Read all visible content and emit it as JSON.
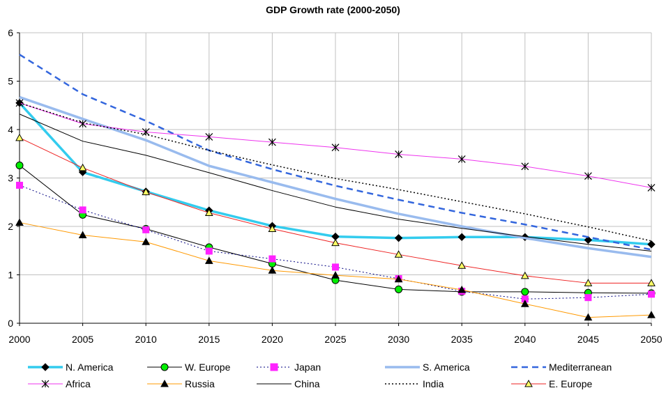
{
  "chart_data": {
    "type": "line",
    "title": "GDP Growth rate (2000-2050)",
    "xlabel": "",
    "ylabel": "",
    "x": [
      2000,
      2005,
      2010,
      2015,
      2020,
      2025,
      2030,
      2035,
      2040,
      2045,
      2050
    ],
    "ylim": [
      0,
      6
    ],
    "yticks": [
      0,
      1,
      2,
      3,
      4,
      5,
      6
    ],
    "grid": true,
    "legend_position": "bottom",
    "series": [
      {
        "name": "N. America",
        "color": "#33CCEE",
        "line_style": "solid",
        "width": 3.5,
        "marker": "diamond",
        "marker_color": "#000000",
        "values": [
          4.55,
          3.12,
          2.72,
          2.33,
          2.01,
          1.79,
          1.76,
          1.78,
          1.78,
          1.72,
          1.63
        ]
      },
      {
        "name": "W. Europe",
        "color": "#000000",
        "line_style": "solid",
        "width": 1,
        "marker": "circle",
        "marker_color": "#00EE00",
        "values": [
          3.26,
          2.24,
          1.95,
          1.57,
          1.23,
          0.89,
          0.7,
          0.65,
          0.65,
          0.63,
          0.62
        ]
      },
      {
        "name": "Japan",
        "color": "#000080",
        "line_style": "dotted",
        "width": 1,
        "marker": "square",
        "marker_color": "#FF22FF",
        "values": [
          2.85,
          2.34,
          1.93,
          1.49,
          1.33,
          1.16,
          0.92,
          0.66,
          0.5,
          0.53,
          0.6
        ]
      },
      {
        "name": "S. America",
        "color": "#99BBEE",
        "line_style": "solid",
        "width": 3.5,
        "marker": "none",
        "marker_color": "",
        "values": [
          4.67,
          4.22,
          3.78,
          3.25,
          2.91,
          2.57,
          2.26,
          2.0,
          1.76,
          1.55,
          1.37
        ]
      },
      {
        "name": "Mediterranean",
        "color": "#3366DD",
        "line_style": "dashed",
        "width": 2.5,
        "marker": "none",
        "marker_color": "",
        "values": [
          5.55,
          4.73,
          4.18,
          3.57,
          3.18,
          2.84,
          2.55,
          2.28,
          2.04,
          1.78,
          1.52
        ]
      },
      {
        "name": "Africa",
        "color": "#EE33EE",
        "line_style": "solid",
        "width": 1,
        "marker": "asterisk",
        "marker_color": "#000000",
        "values": [
          4.55,
          4.12,
          3.95,
          3.85,
          3.74,
          3.63,
          3.49,
          3.39,
          3.24,
          3.04,
          2.8
        ]
      },
      {
        "name": "Russia",
        "color": "#FF9900",
        "line_style": "solid",
        "width": 1,
        "marker": "triangle",
        "marker_color": "#000000",
        "values": [
          2.08,
          1.82,
          1.68,
          1.29,
          1.09,
          0.99,
          0.91,
          0.69,
          0.4,
          0.12,
          0.17
        ]
      },
      {
        "name": "China",
        "color": "#000000",
        "line_style": "solid",
        "width": 1,
        "marker": "none",
        "marker_color": "",
        "values": [
          4.32,
          3.76,
          3.47,
          3.11,
          2.74,
          2.4,
          2.15,
          1.96,
          1.79,
          1.63,
          1.49
        ]
      },
      {
        "name": "India",
        "color": "#000000",
        "line_style": "dotted",
        "width": 1.5,
        "marker": "none",
        "marker_color": "",
        "values": [
          4.55,
          4.14,
          3.9,
          3.57,
          3.27,
          2.99,
          2.76,
          2.51,
          2.26,
          1.99,
          1.7
        ]
      },
      {
        "name": "E. Europe",
        "color": "#EE2222",
        "line_style": "solid",
        "width": 1,
        "marker": "triangle",
        "marker_color": "#FFFF66",
        "values": [
          3.83,
          3.21,
          2.71,
          2.28,
          1.95,
          1.66,
          1.42,
          1.19,
          0.98,
          0.83,
          0.83
        ]
      }
    ]
  }
}
